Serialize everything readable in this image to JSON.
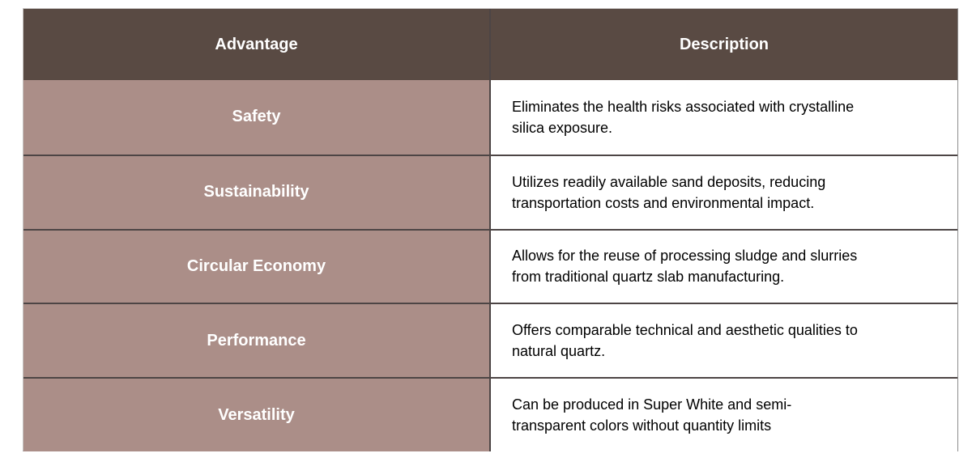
{
  "table": {
    "columns": [
      {
        "label": "Advantage"
      },
      {
        "label": "Description"
      }
    ],
    "rows": [
      {
        "advantage": "Safety",
        "description": "Eliminates the health risks associated with crystalline\nsilica exposure."
      },
      {
        "advantage": "Sustainability",
        "description": "Utilizes readily available sand deposits, reducing\ntransportation costs and environmental impact."
      },
      {
        "advantage": "Circular Economy",
        "description": "Allows for the reuse of processing sludge and slurries\nfrom traditional quartz slab manufacturing."
      },
      {
        "advantage": "Performance",
        "description": "Offers comparable technical and aesthetic qualities to\nnatural quartz."
      },
      {
        "advantage": "Versatility",
        "description": "Can be produced in Super White and semi-\ntransparent colors without quantity limits"
      }
    ],
    "colors": {
      "header_bg": "#594A43",
      "header_text": "#FFFFFF",
      "advantage_bg": "#AB8E88",
      "advantage_text": "#FFFFFF",
      "description_bg": "#FFFFFF",
      "description_text": "#000000",
      "border_inner": "#4D4545",
      "border_outer": "#8C8C8C",
      "page_bg": "#FFFFFF"
    }
  }
}
